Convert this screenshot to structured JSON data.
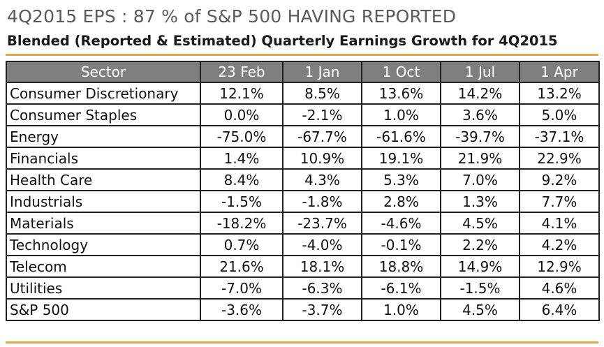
{
  "header": {
    "title": "4Q2015 EPS : 87 % of S&P 500 HAVING REPORTED",
    "subtitle": "Blended (Reported & Estimated) Quarterly Earnings Growth for 4Q2015"
  },
  "colors": {
    "accent": "#e0a64a",
    "header_bg": "#7f7f7f",
    "title": "#5a5a5a"
  },
  "chart_data": {
    "type": "table",
    "title": "4Q2015 EPS : 87 % of S&P 500 HAVING REPORTED",
    "subtitle": "Blended (Reported & Estimated) Quarterly Earnings Growth for 4Q2015",
    "columns": [
      "Sector",
      "23 Feb",
      "1 Jan",
      "1 Oct",
      "1 Jul",
      "1 Apr"
    ],
    "rows": [
      [
        "Consumer Discretionary",
        "12.1%",
        "8.5%",
        "13.6%",
        "14.2%",
        "13.2%"
      ],
      [
        "Consumer Staples",
        "0.0%",
        "-2.1%",
        "1.0%",
        "3.6%",
        "5.0%"
      ],
      [
        "Energy",
        "-75.0%",
        "-67.7%",
        "-61.6%",
        "-39.7%",
        "-37.1%"
      ],
      [
        "Financials",
        "1.4%",
        "10.9%",
        "19.1%",
        "21.9%",
        "22.9%"
      ],
      [
        "Health Care",
        "8.4%",
        "4.3%",
        "5.3%",
        "7.0%",
        "9.2%"
      ],
      [
        "Industrials",
        "-1.5%",
        "-1.8%",
        "2.8%",
        "1.3%",
        "7.7%"
      ],
      [
        "Materials",
        "-18.2%",
        "-23.7%",
        "-4.6%",
        "4.5%",
        "4.1%"
      ],
      [
        "Technology",
        "0.7%",
        "-4.0%",
        "-0.1%",
        "2.2%",
        "4.2%"
      ],
      [
        "Telecom",
        "21.6%",
        "18.1%",
        "18.8%",
        "14.9%",
        "12.9%"
      ],
      [
        "Utilities",
        "-7.0%",
        "-6.3%",
        "-6.1%",
        "-1.5%",
        "4.6%"
      ],
      [
        "S&P 500",
        "-3.6%",
        "-3.7%",
        "1.0%",
        "4.5%",
        "6.4%"
      ]
    ]
  }
}
